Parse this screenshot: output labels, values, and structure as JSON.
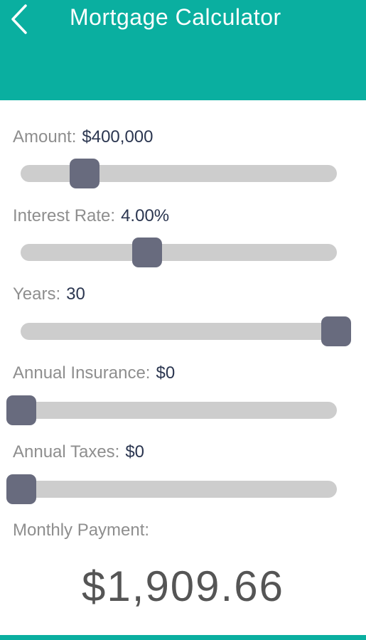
{
  "header": {
    "title": "Mortgage Calculator",
    "back_icon": "chevron-left-icon",
    "background": "#0aafa0"
  },
  "sliders": [
    {
      "label": "Amount:",
      "value": "$400,000",
      "position_fraction": 0.2
    },
    {
      "label": "Interest Rate:",
      "value": "4.00%",
      "position_fraction": 0.4
    },
    {
      "label": "Years:",
      "value": "30",
      "position_fraction": 1.0
    },
    {
      "label": "Annual Insurance:",
      "value": "$0",
      "position_fraction": 0.0
    },
    {
      "label": "Annual Taxes:",
      "value": "$0",
      "position_fraction": 0.0
    }
  ],
  "result": {
    "label": "Monthly Payment:",
    "value": "$1,909.66"
  },
  "colors": {
    "accent": "#0aafa0",
    "thumb": "#686b7e",
    "track": "#cdcdcd",
    "label": "#8e8e8e",
    "value": "#2b3650"
  }
}
